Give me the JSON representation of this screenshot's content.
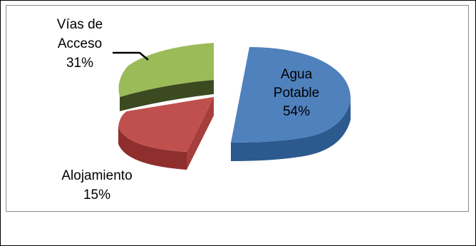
{
  "chart_data": {
    "type": "pie",
    "variant": "3d-exploded",
    "title": "",
    "slices": [
      {
        "label": "Agua Potable",
        "value": 54,
        "percent_label": "54%",
        "color": "#4F81BD"
      },
      {
        "label": "Alojamiento",
        "value": 15,
        "percent_label": "15%",
        "color": "#C0504D"
      },
      {
        "label": "Vías de Acceso",
        "value": 31,
        "percent_label": "31%",
        "color": "#9BBB59"
      }
    ],
    "label_lines": {
      "agua": [
        "Agua",
        "Potable",
        "54%"
      ],
      "alojamiento": [
        "Alojamiento",
        "15%"
      ],
      "vias": [
        "Vías de",
        "Acceso",
        "31%"
      ]
    },
    "legend": "none"
  }
}
